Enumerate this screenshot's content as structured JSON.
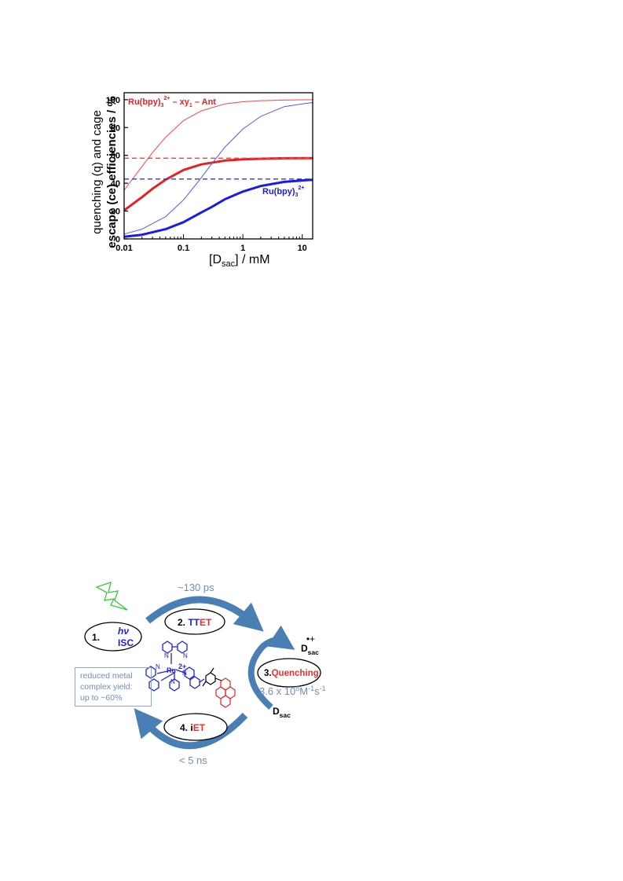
{
  "chart_data": {
    "type": "line",
    "xlabel": "[D",
    "xlabel_sub": "sac",
    "xlabel_tail": "] / mM",
    "ylabel_line1": "quenching (q) and cage",
    "ylabel_line2": "escape (ce) efficiencies / %",
    "x_scale": "log",
    "xlim": [
      0.01,
      15
    ],
    "ylim": [
      0,
      105
    ],
    "x_ticks": [
      0.01,
      0.1,
      1,
      10
    ],
    "x_tick_labels": [
      "0.01",
      "0.1",
      "1",
      "10"
    ],
    "y_ticks": [
      0,
      20,
      40,
      60,
      80,
      100
    ],
    "y_tick_labels": [
      "0",
      "20",
      "40",
      "60",
      "80",
      "100"
    ],
    "grid": false,
    "series": [
      {
        "color": "#ff4040",
        "style": "thin",
        "x": [
          0.01,
          0.02,
          0.03,
          0.05,
          0.1,
          0.2,
          0.5,
          1,
          2,
          5,
          10,
          15
        ],
        "y": [
          35,
          52,
          62,
          73,
          85,
          92,
          97,
          98.5,
          99.3,
          99.7,
          99.9,
          100
        ]
      },
      {
        "color": "#e82020",
        "style": "thick",
        "x": [
          0.01,
          0.02,
          0.03,
          0.05,
          0.1,
          0.2,
          0.5,
          1,
          2,
          5,
          10,
          15
        ],
        "y": [
          20.5,
          30,
          36,
          42.5,
          49.5,
          53.5,
          56.3,
          57.2,
          57.6,
          57.9,
          58,
          58
        ]
      },
      {
        "color": "#ff4040",
        "style": "dashed",
        "x": [
          0.01,
          15
        ],
        "y": [
          58,
          58
        ]
      },
      {
        "color": "#5555ff",
        "style": "thin",
        "x": [
          0.01,
          0.02,
          0.05,
          0.1,
          0.2,
          0.3,
          0.5,
          1,
          2,
          5,
          10,
          15
        ],
        "y": [
          3.5,
          7,
          16,
          28,
          44,
          54,
          66,
          79,
          88,
          95,
          97,
          98
        ]
      },
      {
        "color": "#1a1aee",
        "style": "thick",
        "x": [
          0.01,
          0.02,
          0.05,
          0.1,
          0.2,
          0.3,
          0.5,
          1,
          2,
          5,
          10,
          15
        ],
        "y": [
          1.5,
          3,
          7,
          12,
          19,
          23,
          28.5,
          34,
          38,
          41,
          42,
          42.5
        ]
      },
      {
        "color": "#3333ee",
        "style": "dashed",
        "x": [
          0.01,
          15
        ],
        "y": [
          43,
          43
        ]
      }
    ],
    "annotations": {
      "red_label": "Ru(bpy)",
      "red_label_sub": "3",
      "red_label_sup": "2+",
      "red_label_tail": " – xy",
      "red_label_sub2": "1",
      "red_label_tail2": " – Ant",
      "blue_label": "Ru(bpy)",
      "blue_label_sub": "3",
      "blue_label_sup": "2+"
    }
  },
  "scheme": {
    "step1_num": "1.",
    "step1_hv": "hν",
    "step1_isc": "ISC",
    "step2_prefix": "2. ",
    "step2_tt": "TT",
    "step2_et": "ET",
    "step2_time": "~130 ps",
    "step3_prefix": "3.",
    "step3_label": "Quenching",
    "step3_rate_main": "3.6 x 10",
    "step3_rate_exp": "8",
    "step3_rate_m": "M",
    "step3_rate_mexp": "-1",
    "step3_rate_s": "s",
    "step3_rate_sexp": "-1",
    "step4_prefix": "4. i",
    "step4_et": "ET",
    "step4_time": "< 5 ns",
    "dsac_radical": "D",
    "dsac_radical_sub": "sac",
    "dsac_radical_sup": "•+",
    "dsac": "D",
    "dsac_sub": "sac",
    "note_line1": "reduced metal",
    "note_line2": "complex yield:",
    "note_line3": "up to ~60%",
    "ru_label": "Ru",
    "ru_charge": "2+",
    "n_label": "N",
    "colors": {
      "blue": "#2020dd",
      "red": "#e83030",
      "arrow": "#4a7fb5",
      "note": "#6d8fb8",
      "flash": "#33cc33"
    }
  }
}
